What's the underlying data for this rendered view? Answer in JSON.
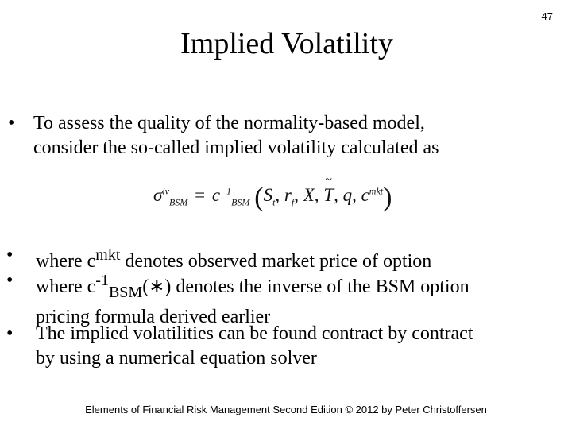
{
  "slide": {
    "page_number": "47",
    "title": "Implied Volatility",
    "bullets": [
      {
        "marker": "•",
        "line1": "To assess the quality of the normality-based model,",
        "line2": "consider the so-called implied volatility calculated as"
      },
      {
        "marker": "•",
        "prefix": "where ",
        "var": "c",
        "sup": "mkt",
        "suffix": " denotes observed market price of option"
      },
      {
        "marker": "•",
        "prefix": "where ",
        "var": "c",
        "sup": "-1",
        "sub": "BSM",
        "suffix_line1": "(∗) denotes the inverse of the BSM option",
        "line2": "pricing formula derived earlier"
      },
      {
        "marker": "•",
        "line1": "The implied volatilities can be found contract by contract",
        "line2": "by using a numerical equation solver"
      }
    ],
    "formula": {
      "sigma": "σ",
      "sigma_sup": "iv",
      "sigma_sub": "BSM",
      "equals": "=",
      "c": "c",
      "c_sup": "−1",
      "c_sub": "BSM",
      "open_paren": "(",
      "S": "S",
      "S_sub": "t",
      "comma1": ", ",
      "r": "r",
      "r_sub": "f",
      "comma2": ", ",
      "X": "X",
      "comma3": ", ",
      "T": "T",
      "comma4": ", ",
      "q": "q",
      "comma5": ", ",
      "cmkt": "c",
      "cmkt_sup": "mkt",
      "close_paren": ")"
    },
    "footer": "Elements of Financial Risk Management Second Edition © 2012  by Peter Christoffersen"
  }
}
